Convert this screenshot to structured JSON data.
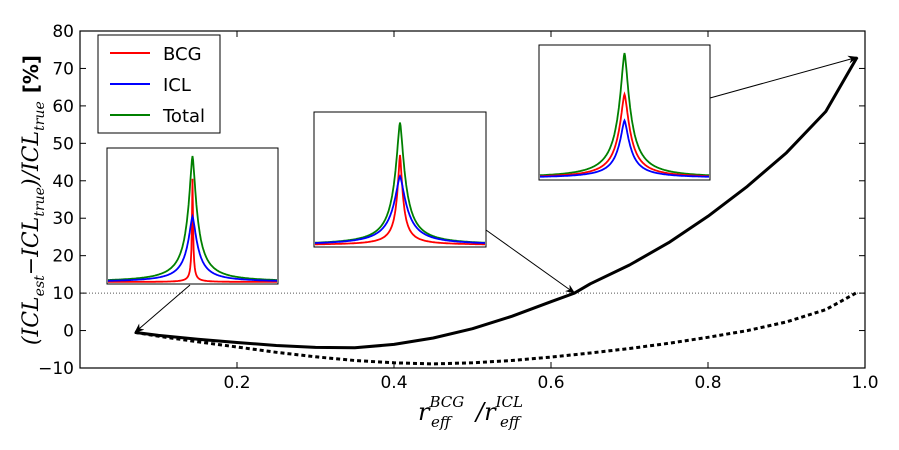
{
  "chart_data": {
    "type": "line",
    "title": "",
    "xlabel": {
      "r1": "r",
      "sub1": "eff",
      "sup1": "BCG",
      "slash": "/",
      "r2": "r",
      "sub2": "eff",
      "sup2": "ICL"
    },
    "ylabel": {
      "main": "(ICL",
      "sub_est": "est",
      "minus": "−ICL",
      "sub_true1": "true",
      "close": ")/ICL",
      "sub_true2": "true",
      "unit": "[%]"
    },
    "xlim": [
      0.0,
      1.0
    ],
    "ylim": [
      -10,
      80
    ],
    "xticks": [
      {
        "value": 0.2,
        "label": "0.2"
      },
      {
        "value": 0.4,
        "label": "0.4"
      },
      {
        "value": 0.6,
        "label": "0.6"
      },
      {
        "value": 0.8,
        "label": "0.8"
      },
      {
        "value": 1.0,
        "label": "1.0"
      }
    ],
    "yticks": [
      {
        "value": -10,
        "label": "−10"
      },
      {
        "value": 0,
        "label": "0"
      },
      {
        "value": 10,
        "label": "10"
      },
      {
        "value": 20,
        "label": "20"
      },
      {
        "value": 30,
        "label": "30"
      },
      {
        "value": 40,
        "label": "40"
      },
      {
        "value": 50,
        "label": "50"
      },
      {
        "value": 60,
        "label": "60"
      },
      {
        "value": 70,
        "label": "70"
      },
      {
        "value": 80,
        "label": "80"
      }
    ],
    "series": [
      {
        "name": "solid",
        "style": "solid",
        "color": "#000000",
        "points": [
          [
            0.07,
            -0.5
          ],
          [
            0.1,
            -1.3
          ],
          [
            0.15,
            -2.3
          ],
          [
            0.2,
            -3.2
          ],
          [
            0.25,
            -4.0
          ],
          [
            0.3,
            -4.5
          ],
          [
            0.35,
            -4.6
          ],
          [
            0.4,
            -3.7
          ],
          [
            0.45,
            -2.0
          ],
          [
            0.5,
            0.5
          ],
          [
            0.55,
            3.8
          ],
          [
            0.6,
            7.7
          ],
          [
            0.63,
            10.0
          ],
          [
            0.65,
            12.5
          ],
          [
            0.7,
            17.5
          ],
          [
            0.75,
            23.5
          ],
          [
            0.8,
            30.5
          ],
          [
            0.85,
            38.5
          ],
          [
            0.9,
            47.5
          ],
          [
            0.95,
            58.5
          ],
          [
            0.99,
            73.0
          ]
        ]
      },
      {
        "name": "dotted",
        "style": "dotted",
        "color": "#000000",
        "points": [
          [
            0.07,
            -0.5
          ],
          [
            0.1,
            -1.5
          ],
          [
            0.15,
            -3.0
          ],
          [
            0.2,
            -4.4
          ],
          [
            0.25,
            -5.8
          ],
          [
            0.3,
            -7.0
          ],
          [
            0.35,
            -8.0
          ],
          [
            0.4,
            -8.6
          ],
          [
            0.45,
            -8.9
          ],
          [
            0.5,
            -8.6
          ],
          [
            0.55,
            -8.0
          ],
          [
            0.6,
            -7.1
          ],
          [
            0.65,
            -6.0
          ],
          [
            0.7,
            -4.8
          ],
          [
            0.75,
            -3.4
          ],
          [
            0.8,
            -1.8
          ],
          [
            0.85,
            0.0
          ],
          [
            0.9,
            2.3
          ],
          [
            0.95,
            5.6
          ],
          [
            0.99,
            10.2
          ]
        ]
      }
    ],
    "reference_line": {
      "y": 10,
      "style": "dotted",
      "color": "#555555"
    },
    "arrows": [
      {
        "name": "arrow-inset-1",
        "to": [
          0.07,
          -0.5
        ]
      },
      {
        "name": "arrow-inset-2",
        "to": [
          0.63,
          10.0
        ]
      },
      {
        "name": "arrow-inset-3",
        "to": [
          0.99,
          73.0
        ]
      }
    ],
    "legend": {
      "placement": "top-left",
      "entries": [
        {
          "label": "BCG",
          "color": "#ff0000"
        },
        {
          "label": "ICL",
          "color": "#0000ff"
        },
        {
          "label": "Total",
          "color": "#008000"
        }
      ]
    },
    "insets": [
      {
        "name": "inset-1",
        "widths": {
          "bcg": 0.01,
          "icl": 0.09,
          "total": 0.08
        },
        "peaks": {
          "bcg": 0.82,
          "icl": 0.52,
          "total": 1.0
        }
      },
      {
        "name": "inset-2",
        "widths": {
          "bcg": 0.05,
          "icl": 0.12,
          "total": 0.09
        },
        "peaks": {
          "bcg": 0.72,
          "icl": 0.55,
          "total": 0.98
        }
      },
      {
        "name": "inset-3",
        "widths": {
          "bcg": 0.1,
          "icl": 0.1,
          "total": 0.1
        },
        "peaks": {
          "bcg": 0.67,
          "icl": 0.46,
          "total": 1.0
        }
      }
    ]
  }
}
